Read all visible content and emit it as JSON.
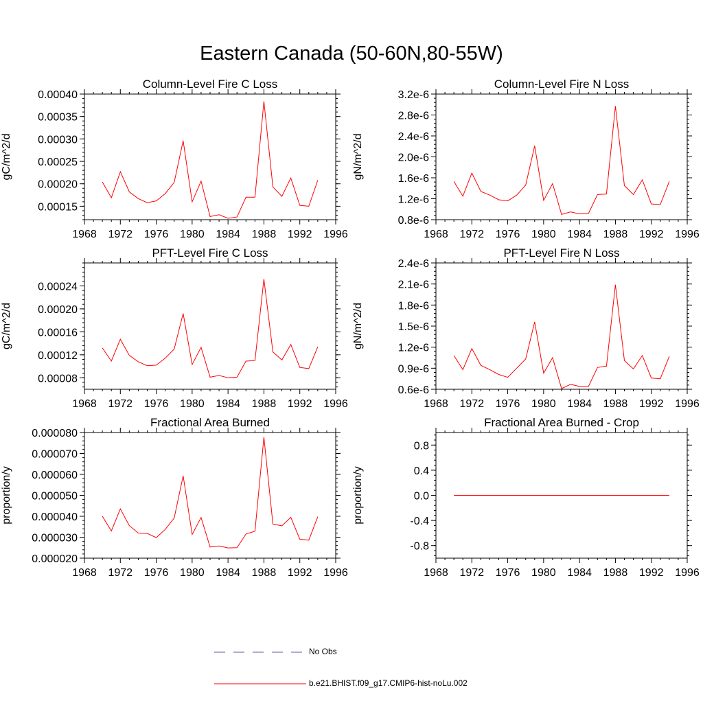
{
  "title": "Eastern Canada (50-60N,80-55W)",
  "colors": {
    "model": "#ff0000",
    "obs": "#5a5aa8",
    "axis": "#000000"
  },
  "legend": {
    "obs_label": "No Obs",
    "model_label": "b.e21.BHIST.f09_g17.CMIP6-hist-noLu.002"
  },
  "chart_data": [
    {
      "type": "line",
      "title": "Column-Level Fire C Loss",
      "ylabel": "gC/m^2/d",
      "xlim": [
        1968,
        1996
      ],
      "ylim": [
        0.00012,
        0.0004
      ],
      "xticks": [
        1968,
        1972,
        1976,
        1980,
        1984,
        1988,
        1992,
        1996
      ],
      "yticks": [
        0.00015,
        0.0002,
        0.00025,
        0.0003,
        0.00035,
        0.0004
      ],
      "ytick_labels": [
        "0.00015",
        "0.00020",
        "0.00025",
        "0.00030",
        "0.00035",
        "0.00040"
      ],
      "x": [
        1970,
        1971,
        1972,
        1973,
        1974,
        1975,
        1976,
        1977,
        1978,
        1979,
        1980,
        1981,
        1982,
        1983,
        1984,
        1985,
        1986,
        1987,
        1988,
        1989,
        1990,
        1991,
        1992,
        1993,
        1994
      ],
      "series": [
        {
          "values": [
            0.000204,
            0.000169,
            0.000227,
            0.000182,
            0.000167,
            0.000158,
            0.000162,
            0.000178,
            0.000203,
            0.000296,
            0.00016,
            0.000206,
            0.000127,
            0.000131,
            0.000123,
            0.000126,
            0.00017,
            0.00017,
            0.000384,
            0.000193,
            0.000172,
            0.000213,
            0.000152,
            0.00015,
            0.000208
          ]
        }
      ]
    },
    {
      "type": "line",
      "title": "Column-Level Fire N Loss",
      "ylabel": "gN/m^2/d",
      "xlim": [
        1968,
        1996
      ],
      "ylim": [
        8e-07,
        3.2e-06
      ],
      "xticks": [
        1968,
        1972,
        1976,
        1980,
        1984,
        1988,
        1992,
        1996
      ],
      "yticks": [
        8e-07,
        1.2e-06,
        1.6e-06,
        2e-06,
        2.4e-06,
        2.8e-06,
        3.2e-06
      ],
      "ytick_labels": [
        "0.8e-6",
        "1.2e-6",
        "1.6e-6",
        "2.0e-6",
        "2.4e-6",
        "2.8e-6",
        "3.2e-6"
      ],
      "x": [
        1970,
        1971,
        1972,
        1973,
        1974,
        1975,
        1976,
        1977,
        1978,
        1979,
        1980,
        1981,
        1982,
        1983,
        1984,
        1985,
        1986,
        1987,
        1988,
        1989,
        1990,
        1991,
        1992,
        1993,
        1994
      ],
      "series": [
        {
          "values": [
            1.53e-06,
            1.25e-06,
            1.69e-06,
            1.34e-06,
            1.27e-06,
            1.18e-06,
            1.16e-06,
            1.27e-06,
            1.46e-06,
            2.21e-06,
            1.17e-06,
            1.49e-06,
            9e-07,
            9.5e-07,
            9.1e-07,
            9.2e-07,
            1.28e-06,
            1.29e-06,
            2.97e-06,
            1.45e-06,
            1.28e-06,
            1.56e-06,
            1.1e-06,
            1.09e-06,
            1.53e-06
          ]
        }
      ]
    },
    {
      "type": "line",
      "title": "PFT-Level Fire C Loss",
      "ylabel": "gC/m^2/d",
      "xlim": [
        1968,
        1996
      ],
      "ylim": [
        6e-05,
        0.00028
      ],
      "xticks": [
        1968,
        1972,
        1976,
        1980,
        1984,
        1988,
        1992,
        1996
      ],
      "yticks": [
        8e-05,
        0.00012,
        0.00016,
        0.0002,
        0.00024
      ],
      "ytick_labels": [
        "0.00008",
        "0.00012",
        "0.00016",
        "0.00020",
        "0.00024"
      ],
      "x": [
        1970,
        1971,
        1972,
        1973,
        1974,
        1975,
        1976,
        1977,
        1978,
        1979,
        1980,
        1981,
        1982,
        1983,
        1984,
        1985,
        1986,
        1987,
        1988,
        1989,
        1990,
        1991,
        1992,
        1993,
        1994
      ],
      "series": [
        {
          "values": [
            0.000132,
            0.000109,
            0.000147,
            0.000119,
            0.000108,
            0.000101,
            0.000102,
            0.000114,
            0.00013,
            0.000192,
            0.000103,
            0.000133,
            8.1e-05,
            8.4e-05,
            8e-05,
            8.1e-05,
            0.000109,
            0.00011,
            0.000252,
            0.000125,
            0.000111,
            0.000138,
            9.8e-05,
            9.6e-05,
            0.000134
          ]
        }
      ]
    },
    {
      "type": "line",
      "title": "PFT-Level Fire N Loss",
      "ylabel": "gN/m^2/d",
      "xlim": [
        1968,
        1996
      ],
      "ylim": [
        6e-07,
        2.4e-06
      ],
      "xticks": [
        1968,
        1972,
        1976,
        1980,
        1984,
        1988,
        1992,
        1996
      ],
      "yticks": [
        6e-07,
        9e-07,
        1.2e-06,
        1.5e-06,
        1.8e-06,
        2.1e-06,
        2.4e-06
      ],
      "ytick_labels": [
        "0.6e-6",
        "0.9e-6",
        "1.2e-6",
        "1.5e-6",
        "1.8e-6",
        "2.1e-6",
        "2.4e-6"
      ],
      "x": [
        1970,
        1971,
        1972,
        1973,
        1974,
        1975,
        1976,
        1977,
        1978,
        1979,
        1980,
        1981,
        1982,
        1983,
        1984,
        1985,
        1986,
        1987,
        1988,
        1989,
        1990,
        1991,
        1992,
        1993,
        1994
      ],
      "series": [
        {
          "values": [
            1.08e-06,
            8.8e-07,
            1.18e-06,
            9.4e-07,
            8.8e-07,
            8.1e-07,
            7.7e-07,
            9e-07,
            1.03e-06,
            1.56e-06,
            8.3e-07,
            1.05e-06,
            6.1e-07,
            6.7e-07,
            6.4e-07,
            6.4e-07,
            9.1e-07,
            9.3e-07,
            2.09e-06,
            1.01e-06,
            8.9e-07,
            1.08e-06,
            7.6e-07,
            7.5e-07,
            1.07e-06
          ]
        }
      ]
    },
    {
      "type": "line",
      "title": "Fractional Area Burned",
      "ylabel": "proportion/y",
      "xlim": [
        1968,
        1996
      ],
      "ylim": [
        2e-05,
        8e-05
      ],
      "xticks": [
        1968,
        1972,
        1976,
        1980,
        1984,
        1988,
        1992,
        1996
      ],
      "yticks": [
        2e-05,
        3e-05,
        4e-05,
        5e-05,
        6e-05,
        7e-05,
        8e-05
      ],
      "ytick_labels": [
        "0.000020",
        "0.000030",
        "0.000040",
        "0.000050",
        "0.000060",
        "0.000070",
        "0.000080"
      ],
      "x": [
        1970,
        1971,
        1972,
        1973,
        1974,
        1975,
        1976,
        1977,
        1978,
        1979,
        1980,
        1981,
        1982,
        1983,
        1984,
        1985,
        1986,
        1987,
        1988,
        1989,
        1990,
        1991,
        1992,
        1993,
        1994
      ],
      "series": [
        {
          "values": [
            4e-05,
            3.3e-05,
            4.35e-05,
            3.55e-05,
            3.2e-05,
            3.18e-05,
            2.98e-05,
            3.37e-05,
            3.91e-05,
            5.93e-05,
            3.13e-05,
            3.94e-05,
            2.53e-05,
            2.58e-05,
            2.49e-05,
            2.5e-05,
            3.15e-05,
            3.29e-05,
            7.78e-05,
            3.63e-05,
            3.54e-05,
            3.95e-05,
            2.9e-05,
            2.86e-05,
            3.98e-05
          ]
        }
      ]
    },
    {
      "type": "line",
      "title": "Fractional Area Burned - Crop",
      "ylabel": "proportion/y",
      "xlim": [
        1968,
        1996
      ],
      "ylim": [
        -1.0,
        1.0
      ],
      "xticks": [
        1968,
        1972,
        1976,
        1980,
        1984,
        1988,
        1992,
        1996
      ],
      "yticks": [
        -0.8,
        -0.4,
        0.0,
        0.4,
        0.8
      ],
      "ytick_labels": [
        "-0.8",
        "-0.4",
        "0.0",
        "0.4",
        "0.8"
      ],
      "x": [
        1970,
        1971,
        1972,
        1973,
        1974,
        1975,
        1976,
        1977,
        1978,
        1979,
        1980,
        1981,
        1982,
        1983,
        1984,
        1985,
        1986,
        1987,
        1988,
        1989,
        1990,
        1991,
        1992,
        1993,
        1994
      ],
      "series": [
        {
          "values": [
            0,
            0,
            0,
            0,
            0,
            0,
            0,
            0,
            0,
            0,
            0,
            0,
            0,
            0,
            0,
            0,
            0,
            0,
            0,
            0,
            0,
            0,
            0,
            0,
            0
          ]
        }
      ]
    }
  ]
}
